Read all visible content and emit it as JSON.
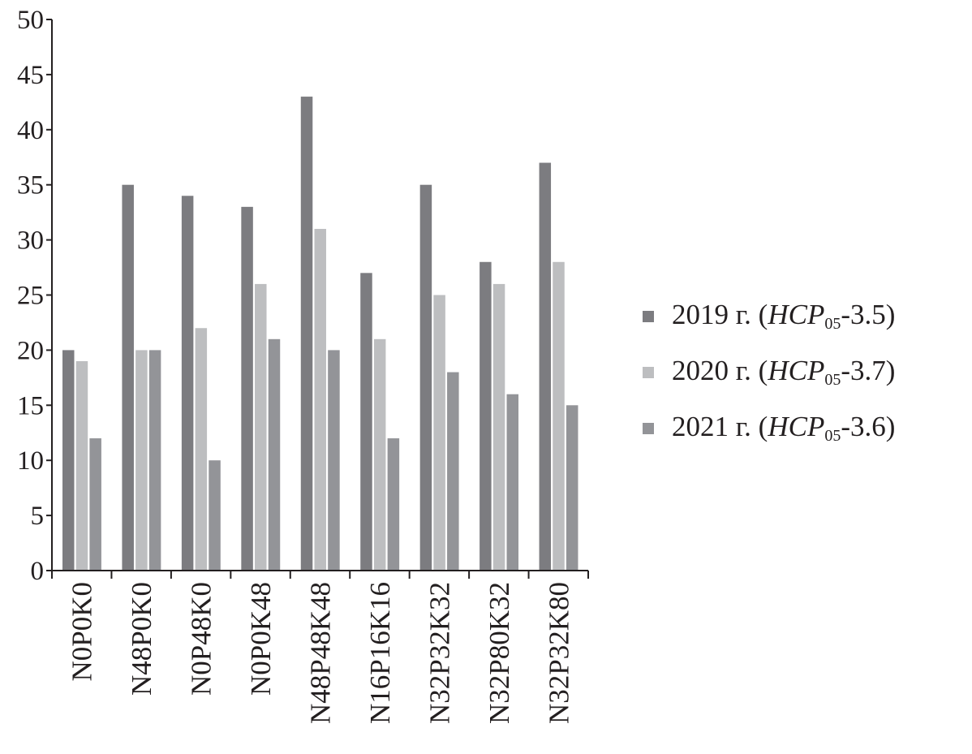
{
  "chart_data": {
    "type": "bar",
    "title": "",
    "xlabel": "",
    "ylabel": "",
    "ylim": [
      0,
      50
    ],
    "yticks": [
      0,
      5,
      10,
      15,
      20,
      25,
      30,
      35,
      40,
      45,
      50
    ],
    "grid": false,
    "legend_placement": "right",
    "categories": [
      "N0P0K0",
      "N48P0K0",
      "N0P48K0",
      "N0P0K48",
      "N48P48K48",
      "N16P16K16",
      "N32P32K32",
      "N32P80K32",
      "N32P32K80"
    ],
    "series": [
      {
        "name": "2019 г. (HCP05-3.5)",
        "name_parts": {
          "pre": "2019 г. (",
          "italic": "HCP",
          "sub": "05",
          "post": "-3.5)"
        },
        "color": "#7c7c80",
        "values": [
          20,
          35,
          34,
          33,
          43,
          27,
          35,
          28,
          37
        ]
      },
      {
        "name": "2020 г. (HCP05-3.7)",
        "name_parts": {
          "pre": "2020 г. (",
          "italic": "HCP",
          "sub": "05",
          "post": "-3.7)"
        },
        "color": "#bdbec0",
        "values": [
          19,
          20,
          22,
          26,
          31,
          21,
          25,
          26,
          28
        ]
      },
      {
        "name": "2021 г. (HCP05-3.6)",
        "name_parts": {
          "pre": "2021 г. (",
          "italic": "HCP",
          "sub": "05",
          "post": "-3.6)"
        },
        "color": "#939498",
        "values": [
          12,
          20,
          10,
          21,
          20,
          12,
          18,
          16,
          15
        ]
      }
    ]
  }
}
